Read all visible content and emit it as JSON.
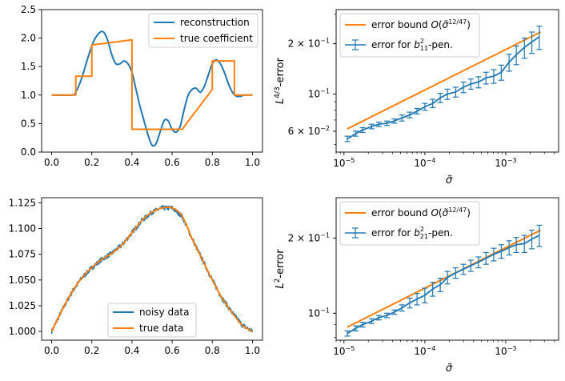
{
  "colors": {
    "blue": "#1f77b4",
    "orange": "#ff7f0e",
    "axis": "#000000"
  },
  "chart_data": [
    {
      "panel": "top-left",
      "type": "line",
      "title": "",
      "xlabel": "",
      "ylabel": "",
      "xlim": [
        -0.05,
        1.05
      ],
      "ylim": [
        0,
        2.5
      ],
      "xticks": [
        0.0,
        0.2,
        0.4,
        0.6,
        0.8,
        1.0
      ],
      "xtick_labels": [
        "0.0",
        "0.2",
        "0.4",
        "0.6",
        "0.8",
        "1.0"
      ],
      "yticks": [
        0.0,
        0.5,
        1.0,
        1.5,
        2.0,
        2.5
      ],
      "ytick_labels": [
        "0.0",
        "0.5",
        "1.0",
        "1.5",
        "2.0",
        "2.5"
      ],
      "grid": false,
      "legend": "top-right",
      "series": [
        {
          "name": "reconstruction",
          "color": "#1f77b4",
          "x": [
            0,
            0.1,
            0.12,
            0.15,
            0.18,
            0.21,
            0.24,
            0.26,
            0.28,
            0.3,
            0.32,
            0.34,
            0.36,
            0.38,
            0.4,
            0.42,
            0.44,
            0.46,
            0.48,
            0.5,
            0.52,
            0.54,
            0.56,
            0.58,
            0.6,
            0.62,
            0.64,
            0.66,
            0.68,
            0.7,
            0.72,
            0.74,
            0.76,
            0.78,
            0.8,
            0.82,
            0.84,
            0.86,
            0.88,
            0.9,
            0.92,
            0.94,
            0.96,
            0.98,
            1.0
          ],
          "y": [
            1.0,
            1.0,
            1.05,
            1.3,
            1.65,
            1.95,
            2.1,
            2.1,
            1.95,
            1.7,
            1.55,
            1.55,
            1.6,
            1.55,
            1.4,
            1.1,
            0.8,
            0.55,
            0.3,
            0.12,
            0.15,
            0.35,
            0.55,
            0.55,
            0.4,
            0.35,
            0.45,
            0.75,
            1.0,
            1.1,
            1.12,
            1.05,
            1.15,
            1.35,
            1.55,
            1.62,
            1.55,
            1.4,
            1.2,
            1.05,
            0.98,
            0.98,
            1.0,
            1.0,
            1.0
          ]
        },
        {
          "name": "true coefficient",
          "color": "#ff7f0e",
          "x": [
            0,
            0.12,
            0.12,
            0.2,
            0.2,
            0.4,
            0.4,
            0.65,
            0.65,
            0.8,
            0.8,
            0.91,
            0.91,
            1.0
          ],
          "y": [
            1.0,
            1.0,
            1.33,
            1.33,
            1.88,
            1.97,
            0.4,
            0.4,
            0.4,
            1.1,
            1.6,
            1.6,
            1.0,
            1.0
          ]
        }
      ]
    },
    {
      "panel": "top-right",
      "type": "line",
      "title": "",
      "xlabel": "σ̃",
      "ylabel": "L4/3-error",
      "xscale": "log",
      "yscale": "log",
      "xlim": [
        8e-06,
        0.0045
      ],
      "ylim": [
        0.045,
        0.32
      ],
      "xticks": [
        1e-05,
        0.0001,
        0.001
      ],
      "xtick_labels": [
        "10−5",
        "10−4",
        "10−3"
      ],
      "yticks": [
        0.06,
        0.1,
        0.2
      ],
      "ytick_labels": [
        "6 × 10−2",
        "10−1",
        "2 × 10−1"
      ],
      "grid": false,
      "legend": "top-left",
      "series": [
        {
          "name": "error bound O(σ̃12/47)",
          "color": "#ff7f0e",
          "x": [
            1.1e-05,
            0.0027
          ],
          "y": [
            0.062,
            0.235
          ]
        },
        {
          "name": "error for b211-pen.",
          "color": "#1f77b4",
          "x": [
            1.1e-05,
            1.4e-05,
            1.7e-05,
            2.2e-05,
            2.7e-05,
            3.4e-05,
            4.2e-05,
            5.2e-05,
            6.5e-05,
            8e-05,
            0.0001,
            0.000125,
            0.000155,
            0.00019,
            0.00024,
            0.0003,
            0.00037,
            0.00046,
            0.00057,
            0.00071,
            0.00088,
            0.0011,
            0.00135,
            0.0017,
            0.0021,
            0.0026
          ],
          "y": [
            0.054,
            0.058,
            0.061,
            0.064,
            0.066,
            0.067,
            0.069,
            0.072,
            0.075,
            0.079,
            0.084,
            0.088,
            0.095,
            0.1,
            0.103,
            0.11,
            0.115,
            0.118,
            0.125,
            0.128,
            0.135,
            0.155,
            0.172,
            0.19,
            0.205,
            0.22
          ],
          "yerr": [
            0.002,
            0.002,
            0.002,
            0.002,
            0.002,
            0.002,
            0.002,
            0.003,
            0.003,
            0.003,
            0.004,
            0.005,
            0.006,
            0.007,
            0.007,
            0.008,
            0.008,
            0.009,
            0.01,
            0.012,
            0.014,
            0.018,
            0.022,
            0.026,
            0.03,
            0.035
          ]
        }
      ]
    },
    {
      "panel": "bottom-left",
      "type": "line",
      "title": "",
      "xlabel": "",
      "ylabel": "",
      "xlim": [
        -0.05,
        1.05
      ],
      "ylim": [
        0.9915,
        1.13
      ],
      "xticks": [
        0.0,
        0.2,
        0.4,
        0.6,
        0.8,
        1.0
      ],
      "xtick_labels": [
        "0.0",
        "0.2",
        "0.4",
        "0.6",
        "0.8",
        "1.0"
      ],
      "yticks": [
        1.0,
        1.025,
        1.05,
        1.075,
        1.1,
        1.125
      ],
      "ytick_labels": [
        "1.000",
        "1.025",
        "1.050",
        "1.075",
        "1.100",
        "1.125"
      ],
      "grid": false,
      "legend": "bottom-center",
      "series": [
        {
          "name": "noisy data",
          "color": "#1f77b4",
          "noise": 0.0022,
          "x": [
            0,
            0.05,
            0.1,
            0.15,
            0.2,
            0.25,
            0.3,
            0.35,
            0.4,
            0.45,
            0.5,
            0.55,
            0.6,
            0.65,
            0.7,
            0.75,
            0.8,
            0.85,
            0.9,
            0.95,
            1.0
          ],
          "y": [
            1.0,
            1.02,
            1.038,
            1.052,
            1.062,
            1.07,
            1.076,
            1.084,
            1.096,
            1.108,
            1.116,
            1.12,
            1.12,
            1.112,
            1.09,
            1.07,
            1.05,
            1.032,
            1.018,
            1.006,
            1.0
          ]
        },
        {
          "name": "true data",
          "color": "#ff7f0e",
          "x": [
            0,
            0.05,
            0.1,
            0.15,
            0.2,
            0.25,
            0.3,
            0.35,
            0.4,
            0.45,
            0.5,
            0.55,
            0.6,
            0.65,
            0.7,
            0.75,
            0.8,
            0.85,
            0.9,
            0.95,
            1.0
          ],
          "y": [
            1.0,
            1.02,
            1.038,
            1.052,
            1.062,
            1.07,
            1.076,
            1.084,
            1.096,
            1.108,
            1.116,
            1.12,
            1.12,
            1.112,
            1.09,
            1.07,
            1.05,
            1.032,
            1.018,
            1.006,
            1.0
          ]
        }
      ]
    },
    {
      "panel": "bottom-right",
      "type": "line",
      "title": "",
      "xlabel": "σ̃",
      "ylabel": "L2-error",
      "xscale": "log",
      "yscale": "log",
      "xlim": [
        8e-06,
        0.0045
      ],
      "ylim": [
        0.078,
        0.29
      ],
      "xticks": [
        1e-05,
        0.0001,
        0.001
      ],
      "xtick_labels": [
        "10−5",
        "10−4",
        "10−3"
      ],
      "yticks": [
        0.1,
        0.2
      ],
      "ytick_labels": [
        "10−1",
        "2 × 10−1"
      ],
      "grid": false,
      "legend": "top-left",
      "series": [
        {
          "name": "error bound O(σ̃12/47)",
          "color": "#ff7f0e",
          "x": [
            1.1e-05,
            0.0027
          ],
          "y": [
            0.088,
            0.215
          ]
        },
        {
          "name": "error for b221-pen.",
          "color": "#1f77b4",
          "x": [
            1.1e-05,
            1.4e-05,
            1.7e-05,
            2.2e-05,
            2.7e-05,
            3.4e-05,
            4.2e-05,
            5.2e-05,
            6.5e-05,
            8e-05,
            0.0001,
            0.000125,
            0.000155,
            0.00019,
            0.00024,
            0.0003,
            0.00037,
            0.00046,
            0.00057,
            0.00071,
            0.00088,
            0.0011,
            0.00135,
            0.0017,
            0.0021,
            0.0026
          ],
          "y": [
            0.083,
            0.087,
            0.09,
            0.093,
            0.096,
            0.098,
            0.101,
            0.105,
            0.11,
            0.114,
            0.118,
            0.125,
            0.13,
            0.139,
            0.145,
            0.15,
            0.155,
            0.16,
            0.166,
            0.172,
            0.177,
            0.183,
            0.188,
            0.19,
            0.198,
            0.205
          ],
          "yerr": [
            0.002,
            0.002,
            0.002,
            0.002,
            0.002,
            0.002,
            0.002,
            0.003,
            0.005,
            0.006,
            0.008,
            0.008,
            0.008,
            0.008,
            0.007,
            0.007,
            0.008,
            0.008,
            0.009,
            0.01,
            0.011,
            0.012,
            0.013,
            0.015,
            0.017,
            0.02
          ]
        }
      ]
    }
  ],
  "legend_display": {
    "top_left": [
      "reconstruction",
      "true coefficient"
    ],
    "bottom_left": [
      "noisy data",
      "true data"
    ],
    "top_right": {
      "bound": [
        "error bound ",
        "O",
        "(",
        "σ̃",
        "12/47",
        ")"
      ],
      "err": [
        "error for ",
        "b",
        "2",
        "11",
        "-pen."
      ]
    },
    "bottom_right": {
      "bound": [
        "error bound ",
        "O",
        "(",
        "σ̃",
        "12/47",
        ")"
      ],
      "err": [
        "error for ",
        "b",
        "2",
        "21",
        "-pen."
      ]
    }
  },
  "axis_text": {
    "top_right_ylabel": [
      "L",
      "4/3",
      "-error"
    ],
    "bottom_right_ylabel": [
      "L",
      "2",
      "-error"
    ],
    "sigma": "σ̃",
    "log_ticks": {
      "x": [
        [
          "10",
          "−5"
        ],
        [
          "10",
          "−4"
        ],
        [
          "10",
          "−3"
        ]
      ],
      "top_y": [
        [
          "6 × 10",
          "−2"
        ],
        [
          "10",
          "−1"
        ],
        [
          "2 × 10",
          "−1"
        ]
      ],
      "bottom_y": [
        [
          "10",
          "−1"
        ],
        [
          "2 × 10",
          "−1"
        ]
      ]
    }
  }
}
